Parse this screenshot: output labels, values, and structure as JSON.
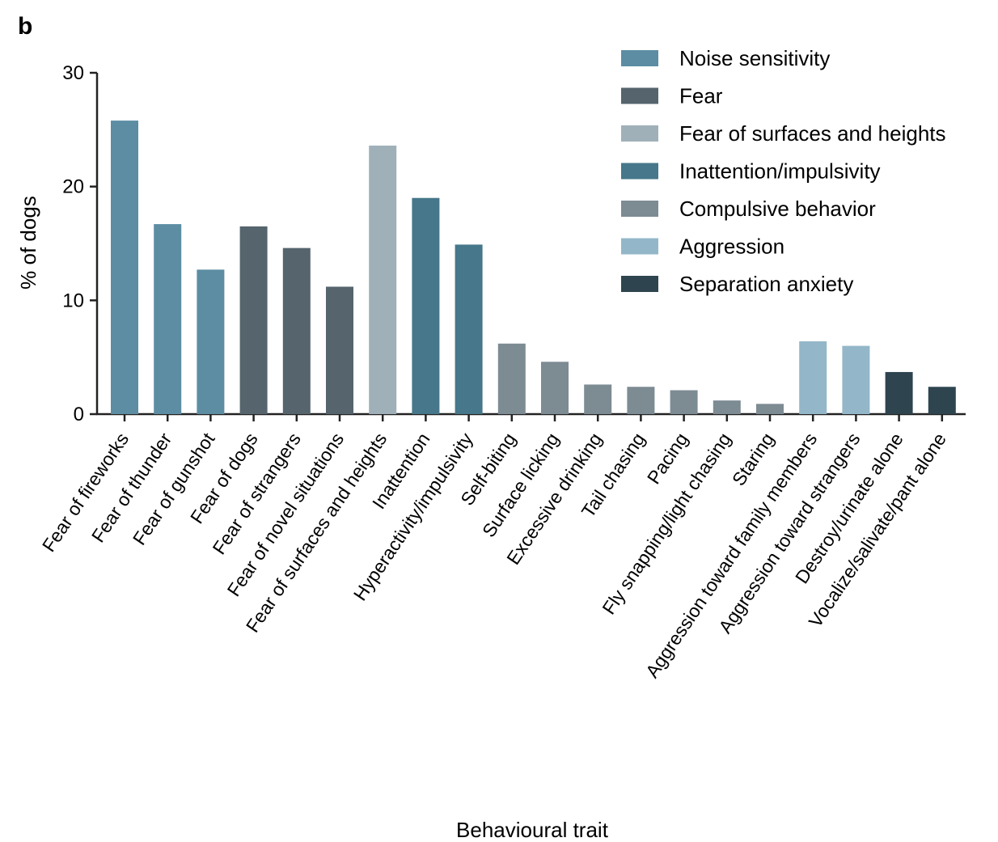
{
  "panel_label": "b",
  "chart_data": {
    "type": "bar",
    "xlabel": "Behavioural trait",
    "ylabel": "% of dogs",
    "ylim": [
      0,
      30
    ],
    "yticks": [
      0,
      10,
      20,
      30
    ],
    "grid": false,
    "legend_position": "top-right",
    "groups": [
      {
        "name": "Noise sensitivity",
        "color": "#5c8da3"
      },
      {
        "name": "Fear",
        "color": "#55646d"
      },
      {
        "name": "Fear of surfaces and heights",
        "color": "#9fb0b8"
      },
      {
        "name": "Inattention/impulsivity",
        "color": "#46778a"
      },
      {
        "name": "Compulsive behavior",
        "color": "#7d8b93"
      },
      {
        "name": "Aggression",
        "color": "#93b7c9"
      },
      {
        "name": "Separation anxiety",
        "color": "#2e4550"
      }
    ],
    "categories": [
      "Fear of fireworks",
      "Fear of thunder",
      "Fear of gunshot",
      "Fear of dogs",
      "Fear of strangers",
      "Fear of novel situations",
      "Fear of surfaces and heights",
      "Inattention",
      "Hyperactivity/impulsivity",
      "Self-biting",
      "Surface licking",
      "Excessive drinking",
      "Tail chasing",
      "Pacing",
      "Fly snapping/light chasing",
      "Staring",
      "Aggression toward family members",
      "Aggression toward strangers",
      "Destroy/urinate alone",
      "Vocalize/salivate/pant alone"
    ],
    "values": [
      25.8,
      16.7,
      12.7,
      16.5,
      14.6,
      11.2,
      23.6,
      19.0,
      14.9,
      6.2,
      4.6,
      2.6,
      2.4,
      2.1,
      1.2,
      0.9,
      6.4,
      6.0,
      3.7,
      2.4
    ],
    "category_group": [
      0,
      0,
      0,
      1,
      1,
      1,
      2,
      3,
      3,
      4,
      4,
      4,
      4,
      4,
      4,
      4,
      5,
      5,
      6,
      6
    ]
  }
}
